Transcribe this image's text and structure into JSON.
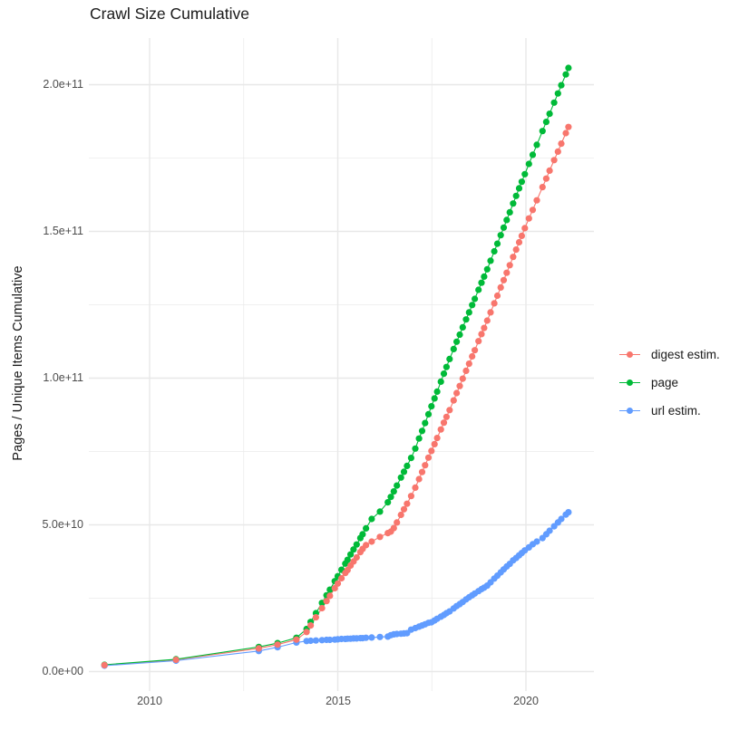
{
  "title": "Crawl Size Cumulative",
  "y_axis": {
    "label": "Pages / Unique Items Cumulative",
    "ticks": [
      "0.0e+00",
      "5.0e+10",
      "1.0e+11",
      "1.5e+11",
      "2.0e+11"
    ]
  },
  "x_axis": {
    "ticks": [
      "2010",
      "2015",
      "2020"
    ]
  },
  "legend": {
    "items": [
      {
        "label": "digest estim.",
        "color": "#F8766D"
      },
      {
        "label": "page",
        "color": "#00BA38"
      },
      {
        "label": "url estim.",
        "color": "#619CFF"
      }
    ]
  },
  "chart_data": {
    "type": "line",
    "title": "Crawl Size Cumulative",
    "xlabel": "",
    "ylabel": "Pages / Unique Items Cumulative",
    "x_tick_years": [
      2010,
      2015,
      2020
    ],
    "x_minor_years": [
      2012.5,
      2017.5
    ],
    "y_tick_values_e9": [
      0,
      50,
      100,
      150,
      200
    ],
    "y_minor_values_e9": [
      25,
      75,
      125,
      175
    ],
    "y_tick_labels": [
      "0.0e+00",
      "5.0e+10",
      "1.0e+11",
      "1.5e+11",
      "2.0e+11"
    ],
    "xlim": [
      2008.4,
      2021.8
    ],
    "ylim_e9": [
      -8,
      216
    ],
    "grid": true,
    "legend_position": "right",
    "value_unit": "items, values in billions (1e9)",
    "x": [
      2008.8,
      2010.7,
      2012.9,
      2013.4,
      2013.9,
      2014.17,
      2014.28,
      2014.42,
      2014.58,
      2014.7,
      2014.79,
      2014.92,
      2015.0,
      2015.1,
      2015.2,
      2015.26,
      2015.34,
      2015.42,
      2015.5,
      2015.6,
      2015.66,
      2015.75,
      2015.9,
      2016.12,
      2016.33,
      2016.41,
      2016.49,
      2016.57,
      2016.68,
      2016.76,
      2016.84,
      2016.95,
      2017.06,
      2017.16,
      2017.24,
      2017.32,
      2017.41,
      2017.49,
      2017.57,
      2017.64,
      2017.74,
      2017.82,
      2017.89,
      2017.97,
      2018.08,
      2018.16,
      2018.24,
      2018.32,
      2018.41,
      2018.49,
      2018.57,
      2018.64,
      2018.74,
      2018.82,
      2018.89,
      2018.97,
      2019.06,
      2019.16,
      2019.24,
      2019.33,
      2019.41,
      2019.49,
      2019.57,
      2019.66,
      2019.74,
      2019.82,
      2019.89,
      2019.97,
      2020.08,
      2020.18,
      2020.29,
      2020.44,
      2020.54,
      2020.63,
      2020.75,
      2020.85,
      2020.94,
      2021.06,
      2021.13
    ],
    "series": [
      {
        "name": "digest estim.",
        "color": "#F8766D",
        "values_e9": [
          2.2,
          4.0,
          7.9,
          9.2,
          10.9,
          13.5,
          15.7,
          18.5,
          21.6,
          24.0,
          25.8,
          28.4,
          30.0,
          31.8,
          33.6,
          34.6,
          36.1,
          37.5,
          38.9,
          40.7,
          41.8,
          43.1,
          44.3,
          45.9,
          47.2,
          47.7,
          48.9,
          50.8,
          53.4,
          55.3,
          57.2,
          59.8,
          62.7,
          65.6,
          68.0,
          70.3,
          72.9,
          75.2,
          77.5,
          79.6,
          82.5,
          84.8,
          86.8,
          89.1,
          92.4,
          94.9,
          97.3,
          99.8,
          102.5,
          104.9,
          107.4,
          109.5,
          112.6,
          115.0,
          117.1,
          119.6,
          122.4,
          125.5,
          128.1,
          130.9,
          133.4,
          135.9,
          138.5,
          141.3,
          143.8,
          146.3,
          148.5,
          151.1,
          154.4,
          157.3,
          160.6,
          165.1,
          168.0,
          170.7,
          174.3,
          177.2,
          179.9,
          183.5,
          185.6
        ]
      },
      {
        "name": "page",
        "color": "#00BA38",
        "values_e9": [
          2.3,
          4.2,
          8.4,
          9.7,
          11.5,
          14.5,
          16.9,
          19.9,
          23.4,
          26.0,
          27.9,
          30.8,
          32.5,
          34.7,
          36.8,
          38.1,
          39.9,
          41.6,
          43.3,
          45.5,
          46.8,
          48.8,
          52.0,
          54.5,
          57.7,
          59.5,
          61.4,
          63.4,
          66.1,
          68.1,
          70.1,
          72.8,
          76.0,
          79.4,
          82.0,
          84.7,
          87.7,
          90.4,
          93.1,
          95.4,
          98.8,
          101.5,
          103.8,
          106.5,
          109.9,
          112.4,
          114.8,
          117.3,
          120.0,
          122.4,
          124.9,
          127.0,
          130.1,
          132.5,
          134.6,
          137.1,
          140.0,
          143.2,
          145.8,
          148.7,
          151.3,
          153.9,
          156.5,
          159.5,
          162.1,
          164.7,
          166.9,
          169.5,
          173.0,
          176.1,
          179.5,
          184.2,
          187.3,
          190.1,
          193.9,
          197.0,
          199.8,
          203.5,
          205.7
        ]
      },
      {
        "name": "url estim.",
        "color": "#619CFF",
        "values_e9": [
          2.0,
          3.7,
          7.0,
          8.3,
          9.9,
          10.4,
          10.5,
          10.6,
          10.7,
          10.8,
          10.8,
          10.9,
          11.0,
          11.1,
          11.1,
          11.2,
          11.2,
          11.3,
          11.3,
          11.4,
          11.4,
          11.5,
          11.6,
          11.8,
          11.9,
          12.4,
          12.7,
          12.8,
          12.9,
          13.0,
          13.1,
          14.3,
          14.8,
          15.3,
          15.7,
          16.1,
          16.6,
          16.8,
          17.4,
          18.0,
          18.7,
          19.3,
          19.9,
          20.5,
          21.5,
          22.3,
          23.0,
          23.7,
          24.6,
          25.3,
          26.0,
          26.6,
          27.4,
          28.1,
          28.6,
          29.3,
          30.4,
          31.7,
          32.7,
          33.8,
          34.8,
          35.8,
          36.7,
          37.9,
          38.7,
          39.6,
          40.4,
          41.3,
          42.3,
          43.4,
          44.3,
          45.5,
          46.8,
          48.0,
          49.5,
          50.8,
          52.0,
          53.5,
          54.3
        ]
      }
    ]
  }
}
